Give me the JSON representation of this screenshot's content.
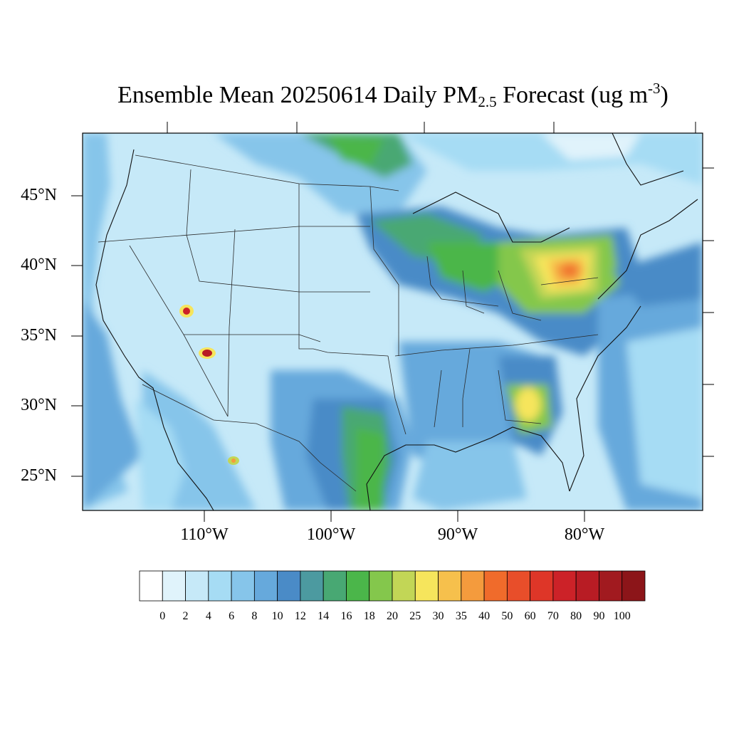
{
  "title": {
    "prefix": "Ensemble Mean 20250614 Daily PM",
    "subscript": "2.5",
    "middle": " Forecast (ug m",
    "superscript": "-3",
    "suffix": ")"
  },
  "map": {
    "lat_labels": [
      "45°N",
      "40°N",
      "35°N",
      "30°N",
      "25°N"
    ],
    "lon_labels": [
      "110°W",
      "100°W",
      "90°W",
      "80°W"
    ]
  },
  "colorbar": {
    "levels": [
      "0",
      "2",
      "4",
      "6",
      "8",
      "10",
      "12",
      "14",
      "16",
      "18",
      "20",
      "25",
      "30",
      "35",
      "40",
      "50",
      "60",
      "70",
      "80",
      "90",
      "100"
    ],
    "colors": [
      "#ffffff",
      "#e0f3fb",
      "#c6e9f8",
      "#a6dcf4",
      "#86c5ea",
      "#66a9dc",
      "#4a8bc7",
      "#4c9aa0",
      "#48a873",
      "#4bb64a",
      "#84c74c",
      "#c2d656",
      "#f6e55c",
      "#f6c04c",
      "#f49b3d",
      "#f06b2b",
      "#e84e2a",
      "#de3628",
      "#cc2228",
      "#b81c24",
      "#a11a1f",
      "#8c1519"
    ]
  }
}
